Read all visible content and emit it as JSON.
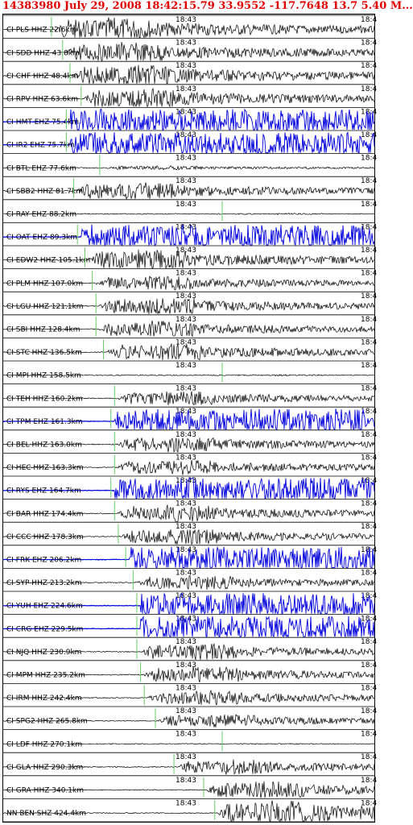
{
  "header": {
    "title": "14383980 July 29, 2008 18:42:15.79   33.9552 -117.7648 13.7 5.40 M..."
  },
  "chart_data": {
    "type": "line",
    "title": "14383980 July 29, 2008 18:42:15.79   33.9552 -117.7648 13.7 5.40 M...",
    "time_label": "18:43",
    "time_label_clipped": "18:4",
    "colors": {
      "trace": "#000000",
      "clipped": "#0000dd",
      "pick": "#66cc66",
      "title": "#e00000"
    },
    "traces": [
      {
        "name": "CI PLS HHZ",
        "dist": "22.6km",
        "onset": 0.14,
        "amp": 0.8,
        "clipped": false
      },
      {
        "name": "CI SDD HHZ",
        "dist": "43.8km",
        "onset": 0.17,
        "amp": 0.7,
        "clipped": false
      },
      {
        "name": "CI CHF HHZ",
        "dist": "48.4km",
        "onset": 0.19,
        "amp": 0.75,
        "clipped": false
      },
      {
        "name": "CI RPV HHZ",
        "dist": "63.6km",
        "onset": 0.22,
        "amp": 0.7,
        "clipped": false
      },
      {
        "name": "CI HMT EHZ",
        "dist": "75.4km",
        "onset": 0.18,
        "amp": 1.0,
        "clipped": true
      },
      {
        "name": "CI IR2 EHZ",
        "dist": "75.7km",
        "onset": 0.18,
        "amp": 1.0,
        "clipped": true
      },
      {
        "name": "CI BTL EHZ",
        "dist": "77.6km",
        "onset": 0.27,
        "amp": 0.15,
        "clipped": false
      },
      {
        "name": "CI SBB2 HHZ",
        "dist": "81.7km",
        "onset": 0.2,
        "amp": 0.6,
        "clipped": false
      },
      {
        "name": "CI RAY EHZ",
        "dist": "88.2km",
        "onset": 0.6,
        "amp": 0.05,
        "clipped": false
      },
      {
        "name": "CI OAT EHZ",
        "dist": "89.3km",
        "onset": 0.21,
        "amp": 1.0,
        "clipped": true
      },
      {
        "name": "CI EDW2 HHZ",
        "dist": "105.1km",
        "onset": 0.23,
        "amp": 0.7,
        "clipped": false
      },
      {
        "name": "CI PLM HHZ",
        "dist": "107.0km",
        "onset": 0.25,
        "amp": 0.5,
        "clipped": false
      },
      {
        "name": "CI LGU HHZ",
        "dist": "121.1km",
        "onset": 0.26,
        "amp": 0.6,
        "clipped": false
      },
      {
        "name": "CI SBI HHZ",
        "dist": "128.4km",
        "onset": 0.26,
        "amp": 0.55,
        "clipped": false
      },
      {
        "name": "CI STC HHZ",
        "dist": "136.5km",
        "onset": 0.28,
        "amp": 0.6,
        "clipped": false
      },
      {
        "name": "CI MPI HHZ",
        "dist": "158.5km",
        "onset": 0.6,
        "amp": 0.05,
        "clipped": false
      },
      {
        "name": "CI TEH HHZ",
        "dist": "160.2km",
        "onset": 0.31,
        "amp": 0.5,
        "clipped": false
      },
      {
        "name": "CI TPM EHZ",
        "dist": "161.3km",
        "onset": 0.3,
        "amp": 1.0,
        "clipped": true
      },
      {
        "name": "CI BEL HHZ",
        "dist": "163.0km",
        "onset": 0.31,
        "amp": 0.55,
        "clipped": false
      },
      {
        "name": "CI HEC HHZ",
        "dist": "163.3km",
        "onset": 0.31,
        "amp": 0.55,
        "clipped": false
      },
      {
        "name": "CI RYS EHZ",
        "dist": "164.7km",
        "onset": 0.3,
        "amp": 1.0,
        "clipped": true
      },
      {
        "name": "CI BAR HHZ",
        "dist": "174.4km",
        "onset": 0.31,
        "amp": 0.6,
        "clipped": false
      },
      {
        "name": "CI CCC HHZ",
        "dist": "178.3km",
        "onset": 0.32,
        "amp": 0.55,
        "clipped": false
      },
      {
        "name": "CI FRK EHZ",
        "dist": "206.2km",
        "onset": 0.34,
        "amp": 1.0,
        "clipped": true
      },
      {
        "name": "CI SYP HHZ",
        "dist": "213.2km",
        "onset": 0.36,
        "amp": 0.5,
        "clipped": false
      },
      {
        "name": "CI YUH EHZ",
        "dist": "224.6km",
        "onset": 0.37,
        "amp": 1.0,
        "clipped": true
      },
      {
        "name": "CI CRG EHZ",
        "dist": "229.5km",
        "onset": 0.37,
        "amp": 1.0,
        "clipped": true
      },
      {
        "name": "CI NJQ HHZ",
        "dist": "230.9km",
        "onset": 0.37,
        "amp": 0.55,
        "clipped": false
      },
      {
        "name": "CI MPM HHZ",
        "dist": "235.2km",
        "onset": 0.38,
        "amp": 0.55,
        "clipped": false
      },
      {
        "name": "CI IRM HHZ",
        "dist": "242.4km",
        "onset": 0.39,
        "amp": 0.5,
        "clipped": false
      },
      {
        "name": "CI SPG2 HHZ",
        "dist": "265.8km",
        "onset": 0.42,
        "amp": 0.45,
        "clipped": false
      },
      {
        "name": "CI LDF HHZ",
        "dist": "270.1km",
        "onset": 0.6,
        "amp": 0.04,
        "clipped": false
      },
      {
        "name": "CI GLA HHZ",
        "dist": "290.3km",
        "onset": 0.47,
        "amp": 0.5,
        "clipped": false
      },
      {
        "name": "CI GRA HHZ",
        "dist": "340.1km",
        "onset": 0.55,
        "amp": 0.6,
        "clipped": false
      },
      {
        "name": "NN BEN SHZ",
        "dist": "424.4km",
        "onset": 0.58,
        "amp": 0.9,
        "clipped": false
      }
    ]
  }
}
